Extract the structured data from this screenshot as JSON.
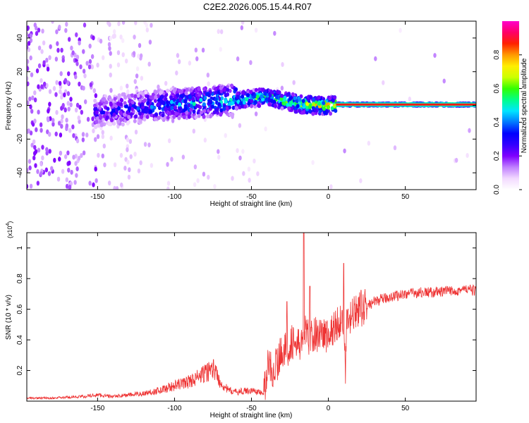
{
  "page_title": "C2E2.2026.005.15.44.R07",
  "chart_data": [
    {
      "type": "heatmap",
      "title": "C2E2.2026.005.15.44.R07",
      "xlabel": "Height of straight line (km)",
      "ylabel": "Frequency (Hz)",
      "xlim": [
        -196,
        96
      ],
      "ylim": [
        -50,
        50
      ],
      "x_ticks": [
        -150,
        -100,
        -50,
        0,
        50
      ],
      "y_ticks": [
        -40,
        -20,
        0,
        20,
        40
      ],
      "colorbar": {
        "label": "Normalized spectral amplitude",
        "range": [
          0,
          1
        ],
        "ticks": [
          0.0,
          0.2,
          0.4,
          0.6,
          0.8
        ],
        "tick_labels": [
          "0.0",
          "0.2",
          "0.4",
          "0.6",
          "0.8"
        ],
        "colors": [
          "#ffffff",
          "#f2d9ff",
          "#c080ff",
          "#7f00ff",
          "#3300ff",
          "#0000ff",
          "#0077ff",
          "#00e5ff",
          "#00ff88",
          "#33ff00",
          "#ccff00",
          "#ffee00",
          "#ff9900",
          "#ff2200",
          "#ff0066",
          "#ff00cc"
        ]
      },
      "ridge": {
        "x": [
          -150,
          -140,
          -130,
          -120,
          -110,
          -100,
          -90,
          -80,
          -70,
          -60,
          -50,
          -40,
          -30,
          -20,
          -10,
          0,
          5,
          95
        ],
        "y": [
          -4,
          -3,
          -2,
          -1,
          0,
          1,
          1,
          2,
          3,
          3,
          4,
          5,
          3,
          1,
          0,
          0,
          0.5,
          0.5
        ],
        "value": [
          0.3,
          0.33,
          0.36,
          0.4,
          0.43,
          0.47,
          0.5,
          0.52,
          0.55,
          0.58,
          0.6,
          0.62,
          0.68,
          0.72,
          0.76,
          0.8,
          0.85,
          0.9
        ]
      }
    },
    {
      "type": "line",
      "xlabel": "Height of straight line (km)",
      "ylabel": "SNR (10 * v/v)",
      "y_multiplier_label": "(x10",
      "y_multiplier_exp": "4",
      "y_multiplier_close": ")",
      "xlim": [
        -196,
        96
      ],
      "ylim": [
        0,
        1.1
      ],
      "x_ticks": [
        -150,
        -100,
        -50,
        0,
        50
      ],
      "y_ticks": [
        0.2,
        0.4,
        0.6,
        0.8,
        1.0
      ],
      "y_tick_labels": [
        "0.2",
        "0.4",
        "0.6",
        "0.8",
        "1"
      ],
      "color": "#ee3333",
      "series": [
        {
          "name": "SNR",
          "x": [
            -196,
            -180,
            -160,
            -150,
            -140,
            -130,
            -120,
            -110,
            -100,
            -90,
            -80,
            -75,
            -70,
            -65,
            -60,
            -50,
            -42,
            -39,
            -36,
            -33,
            -30,
            -27,
            -24,
            -20,
            -17,
            -15,
            -13,
            -10,
            -5,
            0,
            5,
            10,
            11,
            12,
            15,
            20,
            25,
            30,
            40,
            50,
            60,
            70,
            80,
            90,
            96
          ],
          "y": [
            0.02,
            0.02,
            0.03,
            0.04,
            0.03,
            0.04,
            0.05,
            0.07,
            0.1,
            0.13,
            0.18,
            0.22,
            0.12,
            0.07,
            0.06,
            0.07,
            0.05,
            0.25,
            0.2,
            0.25,
            0.35,
            0.32,
            0.4,
            0.35,
            0.4,
            0.45,
            0.42,
            0.43,
            0.45,
            0.42,
            0.5,
            0.55,
            0.15,
            0.5,
            0.55,
            0.6,
            0.62,
            0.65,
            0.68,
            0.7,
            0.71,
            0.71,
            0.72,
            0.73,
            0.72
          ],
          "spikes": [
            {
              "x": -38,
              "y": 0.27
            },
            {
              "x": -27,
              "y": 0.65
            },
            {
              "x": -16,
              "y": 1.1
            },
            {
              "x": -12,
              "y": 0.75
            },
            {
              "x": 10,
              "y": 0.9
            }
          ]
        }
      ]
    }
  ]
}
